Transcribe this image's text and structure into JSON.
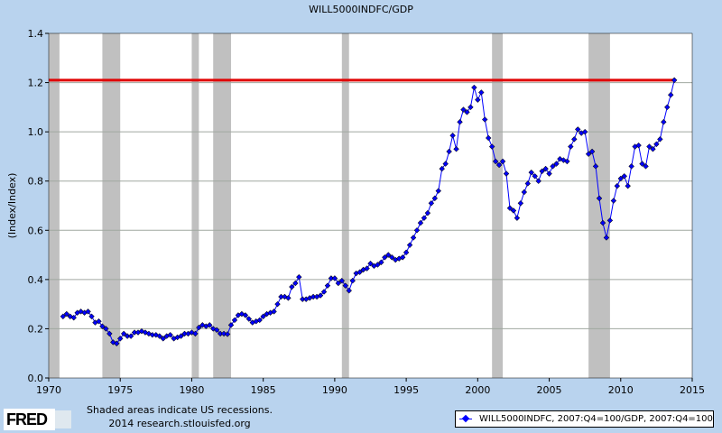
{
  "chart_data": {
    "type": "line",
    "title": "WILL5000INDFC/GDP",
    "xlabel": "",
    "ylabel": "(Index/Index)",
    "xlim": [
      1970,
      2015
    ],
    "ylim": [
      0,
      1.4
    ],
    "xticks": [
      "1970",
      "1975",
      "1980",
      "1985",
      "1990",
      "1995",
      "2000",
      "2005",
      "2010",
      "2015"
    ],
    "yticks": [
      "0.0",
      "0.2",
      "0.4",
      "0.6",
      "0.8",
      "1.0",
      "1.2",
      "1.4"
    ],
    "grid": "horizontal",
    "series": [
      {
        "name": "WILL5000INDFC, 2007:Q4=100/GDP, 2007:Q4=100",
        "color": "#0000ff",
        "start": 1971.0,
        "step": 0.25,
        "values": [
          0.25,
          0.26,
          0.25,
          0.245,
          0.265,
          0.27,
          0.265,
          0.27,
          0.25,
          0.225,
          0.23,
          0.21,
          0.2,
          0.18,
          0.145,
          0.14,
          0.16,
          0.18,
          0.17,
          0.17,
          0.185,
          0.185,
          0.19,
          0.185,
          0.18,
          0.175,
          0.175,
          0.17,
          0.16,
          0.17,
          0.175,
          0.16,
          0.165,
          0.17,
          0.18,
          0.18,
          0.185,
          0.18,
          0.205,
          0.215,
          0.21,
          0.215,
          0.2,
          0.195,
          0.18,
          0.18,
          0.178,
          0.215,
          0.235,
          0.255,
          0.26,
          0.255,
          0.24,
          0.225,
          0.23,
          0.235,
          0.25,
          0.26,
          0.265,
          0.27,
          0.3,
          0.33,
          0.33,
          0.325,
          0.37,
          0.385,
          0.41,
          0.32,
          0.32,
          0.325,
          0.33,
          0.33,
          0.335,
          0.35,
          0.375,
          0.405,
          0.405,
          0.385,
          0.395,
          0.375,
          0.355,
          0.395,
          0.425,
          0.43,
          0.44,
          0.445,
          0.465,
          0.455,
          0.46,
          0.47,
          0.49,
          0.5,
          0.49,
          0.48,
          0.485,
          0.49,
          0.51,
          0.54,
          0.57,
          0.6,
          0.63,
          0.65,
          0.67,
          0.71,
          0.73,
          0.76,
          0.85,
          0.87,
          0.92,
          0.985,
          0.93,
          1.04,
          1.09,
          1.08,
          1.1,
          1.18,
          1.13,
          1.16,
          1.05,
          0.975,
          0.94,
          0.88,
          0.865,
          0.88,
          0.83,
          0.69,
          0.68,
          0.65,
          0.71,
          0.755,
          0.79,
          0.835,
          0.82,
          0.8,
          0.84,
          0.85,
          0.83,
          0.86,
          0.87,
          0.89,
          0.885,
          0.88,
          0.94,
          0.97,
          1.01,
          0.995,
          1.0,
          0.91,
          0.92,
          0.86,
          0.73,
          0.63,
          0.57,
          0.64,
          0.72,
          0.78,
          0.81,
          0.82,
          0.78,
          0.86,
          0.94,
          0.945,
          0.87,
          0.86,
          0.94,
          0.93,
          0.95,
          0.97,
          1.04,
          1.1,
          1.15,
          1.21
        ]
      }
    ],
    "reference_line": {
      "y": 1.21,
      "color": "#e00000"
    },
    "recessions": [
      [
        1969.75,
        1970.75
      ],
      [
        1973.75,
        1975.0
      ],
      [
        1980.0,
        1980.5
      ],
      [
        1981.5,
        1982.75
      ],
      [
        1990.5,
        1991.0
      ],
      [
        2001.0,
        2001.75
      ],
      [
        2007.75,
        2009.25
      ]
    ],
    "legend": "bottom-right"
  },
  "footer": {
    "logo": "FRED",
    "note_line1": "Shaded areas indicate US recessions.",
    "note_line2": "2014 research.stlouisfed.org"
  }
}
